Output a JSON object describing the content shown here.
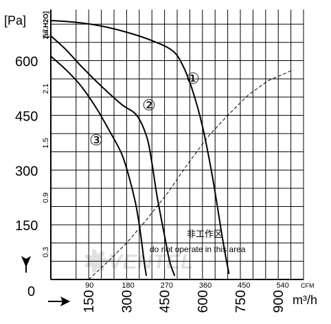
{
  "chart_data": {
    "type": "line",
    "units": {
      "y_primary": "[Pa]",
      "y_secondary": "[in.H2O]",
      "x_primary": "m³/h",
      "x_secondary": "CFM"
    },
    "y_ticks_pa": [
      0,
      150,
      300,
      450,
      600
    ],
    "y_ticks_inh2o": [
      "0.3",
      "0.9",
      "1.5",
      "2.1",
      "2.7"
    ],
    "x_ticks_m3h": [
      150,
      300,
      450,
      600,
      750,
      900
    ],
    "x_ticks_cfm": [
      "90",
      "180",
      "270",
      "360",
      "450",
      "540"
    ],
    "xlim_m3h": [
      0,
      1000
    ],
    "ylim_pa": [
      0,
      740
    ],
    "grid": true,
    "series": [
      {
        "name": "①",
        "x": [
          0,
          100,
          200,
          300,
          400,
          480,
          520,
          560,
          600,
          640,
          680,
          705
        ],
        "y": [
          710,
          705,
          695,
          678,
          655,
          628,
          590,
          520,
          420,
          280,
          110,
          15
        ]
      },
      {
        "name": "②",
        "x": [
          0,
          60,
          120,
          200,
          280,
          340,
          380,
          400,
          420,
          450,
          470,
          490
        ],
        "y": [
          668,
          630,
          585,
          530,
          480,
          450,
          390,
          320,
          230,
          120,
          50,
          10
        ]
      },
      {
        "name": "③",
        "x": [
          0,
          60,
          120,
          180,
          230,
          280,
          310,
          335,
          350,
          360,
          370,
          378
        ],
        "y": [
          612,
          575,
          530,
          470,
          410,
          345,
          280,
          210,
          150,
          100,
          45,
          10
        ]
      }
    ],
    "system_curve": {
      "x": [
        150,
        220,
        300,
        380,
        460,
        540,
        620,
        700,
        780,
        860,
        960
      ],
      "y": [
        0,
        45,
        100,
        165,
        235,
        315,
        390,
        450,
        505,
        545,
        575
      ]
    },
    "annotation": {
      "zh": "非工作区",
      "en": "do not operate in this area"
    },
    "watermark": "VENTEL",
    "colors": {
      "line": "#000000",
      "grid": "#000000",
      "watermark": "#c8c8c8"
    }
  }
}
